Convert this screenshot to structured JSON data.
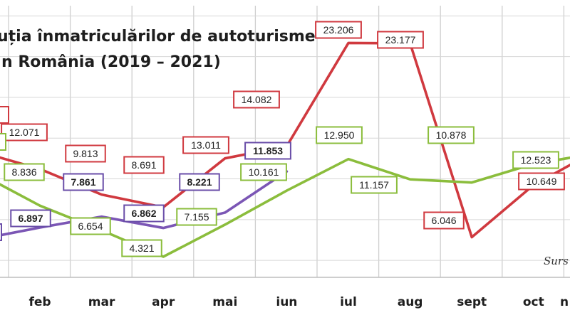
{
  "chart_data": {
    "type": "line",
    "title_lines": [
      "uția înmatriculărilor de autoturisme",
      "n România (2019 – 2021)"
    ],
    "categories": [
      "feb",
      "mar",
      "apr",
      "mai",
      "iun",
      "iul",
      "aug",
      "sept",
      "oct"
    ],
    "first_category_value_level": 7.0,
    "source_label": "Surs",
    "ylim": [
      2.5,
      26.5
    ],
    "grid": true,
    "series": [
      {
        "color": "#d0393f",
        "label_border": "#d0393f",
        "label_bold": false,
        "points": [
          {
            "x": -0.85,
            "y": 13.4
          },
          {
            "x": 0,
            "y": 12.071,
            "label": "12.071"
          },
          {
            "x": 1,
            "y": 9.813,
            "label": "9.813"
          },
          {
            "x": 2,
            "y": 8.691,
            "label": "8.691"
          },
          {
            "x": 3,
            "y": 13.011,
            "label": "13.011"
          },
          {
            "x": 4,
            "y": 14.082,
            "label": "14.082"
          },
          {
            "x": 5,
            "y": 23.206,
            "label": "23.206"
          },
          {
            "x": 6,
            "y": 23.177,
            "label": "23.177"
          },
          {
            "x": 7,
            "y": 6.046,
            "label": "6.046"
          },
          {
            "x": 8,
            "y": 10.649,
            "label": "10.649"
          },
          {
            "x": 8.85,
            "y": 13.2
          }
        ]
      },
      {
        "color": "#8bbd3c",
        "label_border": "#8bbd3c",
        "label_bold": false,
        "points": [
          {
            "x": -0.85,
            "y": 11.3
          },
          {
            "x": 0,
            "y": 8.836,
            "label": "8.836"
          },
          {
            "x": 1,
            "y": 6.654,
            "label": "6.654"
          },
          {
            "x": 2,
            "y": 4.321,
            "label": "4.321"
          },
          {
            "x": 3,
            "y": 7.155,
            "label": "7.155"
          },
          {
            "x": 4,
            "y": 10.161,
            "label": "10.161"
          },
          {
            "x": 5,
            "y": 12.95,
            "label": "12.950"
          },
          {
            "x": 6,
            "y": 11.157,
            "label": "11.157"
          },
          {
            "x": 7,
            "y": 10.878,
            "label": "10.878"
          },
          {
            "x": 8,
            "y": 12.523,
            "label": "12.523"
          },
          {
            "x": 8.85,
            "y": 13.3
          }
        ]
      },
      {
        "color": "#7b56b5",
        "label_border": "#6a4ea8",
        "label_bold": true,
        "points": [
          {
            "x": -0.85,
            "y": 6.0
          },
          {
            "x": 0,
            "y": 6.897,
            "label": "6.897"
          },
          {
            "x": 1,
            "y": 7.861,
            "label": "7.861"
          },
          {
            "x": 2,
            "y": 6.862,
            "label": "6.862"
          },
          {
            "x": 3,
            "y": 8.221,
            "label": "8.221"
          },
          {
            "x": 4,
            "y": 11.853,
            "label": "11.853"
          }
        ]
      }
    ]
  }
}
